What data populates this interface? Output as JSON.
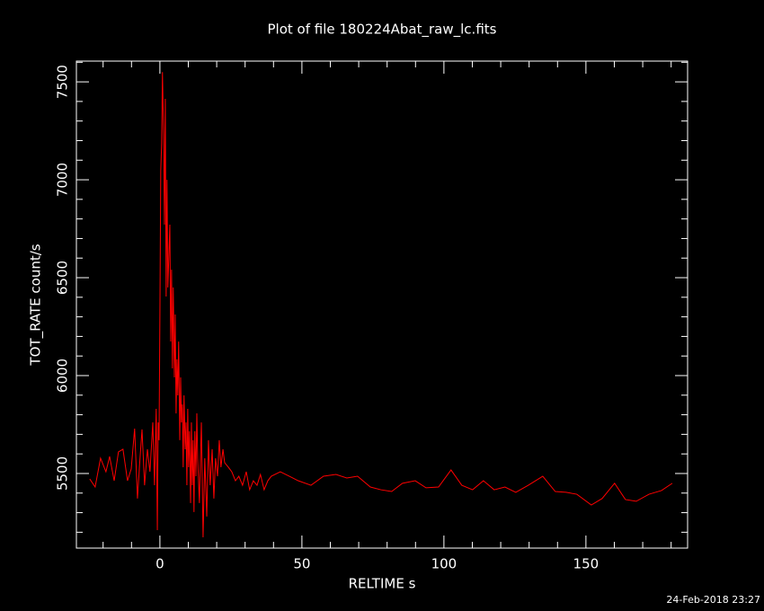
{
  "chart_data": {
    "type": "line",
    "title": "Plot of file 180224Abat_raw_lc.fits",
    "x_label": "RELTIME  s",
    "y_label": "TOT_RATE  count/s",
    "timestamp": "24-Feb-2018 23:27",
    "xlim": [
      -29.4,
      185.8
    ],
    "ylim": [
      5119,
      7606
    ],
    "xticks": [
      0,
      50,
      100,
      150
    ],
    "yticks": [
      5500,
      6000,
      6500,
      7000,
      7500
    ],
    "xminorticks": [
      -20,
      -10,
      10,
      20,
      30,
      40,
      60,
      70,
      80,
      90,
      110,
      120,
      130,
      140,
      160,
      170,
      180
    ],
    "yminorticks": [
      5200,
      5300,
      5400,
      5600,
      5700,
      5800,
      5900,
      6100,
      6200,
      6300,
      6400,
      6600,
      6700,
      6800,
      6900,
      7100,
      7200,
      7300,
      7400,
      7600
    ],
    "grid": false,
    "series": [
      {
        "color": "#ff0000",
        "x": [
          -24.7,
          -22.8,
          -20.9,
          -19.0,
          -17.7,
          -16.1,
          -14.6,
          -13.0,
          -11.4,
          -10.1,
          -8.9,
          -7.9,
          -7.0,
          -6.3,
          -5.4,
          -4.4,
          -3.5,
          -2.5,
          -1.9,
          -1.3,
          -0.9,
          -0.6,
          -0.3,
          0.0,
          0.3,
          0.6,
          0.9,
          1.3,
          1.6,
          1.9,
          2.2,
          2.5,
          2.8,
          3.2,
          3.5,
          3.8,
          4.1,
          4.4,
          4.7,
          5.1,
          5.4,
          5.7,
          6.0,
          6.3,
          6.6,
          7.0,
          7.3,
          7.6,
          7.9,
          8.2,
          8.5,
          8.9,
          9.2,
          9.5,
          9.8,
          10.1,
          10.4,
          10.8,
          11.1,
          11.4,
          11.7,
          12.0,
          12.3,
          12.7,
          13.0,
          13.3,
          13.9,
          14.6,
          15.2,
          15.8,
          16.5,
          17.1,
          17.7,
          18.4,
          19.0,
          19.6,
          20.3,
          20.9,
          21.5,
          22.2,
          22.8,
          24.1,
          25.3,
          26.6,
          27.8,
          29.1,
          30.4,
          31.6,
          32.9,
          34.2,
          35.4,
          36.7,
          38.0,
          39.2,
          42.4,
          45.6,
          48.7,
          53.2,
          57.6,
          62.0,
          65.8,
          69.6,
          74.1,
          77.8,
          81.6,
          85.4,
          89.9,
          93.7,
          98.1,
          102.5,
          106.3,
          110.1,
          113.9,
          117.7,
          121.5,
          125.3,
          129.7,
          134.8,
          139.2,
          143.0,
          146.8,
          151.9,
          155.7,
          160.1,
          163.9,
          167.7,
          172.2,
          176.6,
          180.4
        ],
        "values": [
          5472,
          5431,
          5578,
          5509,
          5587,
          5463,
          5610,
          5624,
          5463,
          5523,
          5729,
          5372,
          5578,
          5725,
          5440,
          5624,
          5509,
          5761,
          5440,
          5830,
          5211,
          5761,
          5670,
          6312,
          7046,
          7183,
          7550,
          7229,
          6771,
          7413,
          6404,
          7000,
          6450,
          6633,
          6771,
          6174,
          6541,
          6037,
          6450,
          5991,
          6312,
          5807,
          6083,
          5899,
          6174,
          5670,
          5991,
          5761,
          5853,
          5532,
          5899,
          5624,
          5761,
          5440,
          5830,
          5532,
          5716,
          5349,
          5761,
          5440,
          5670,
          5303,
          5716,
          5486,
          5807,
          5578,
          5349,
          5761,
          5174,
          5578,
          5280,
          5670,
          5440,
          5624,
          5372,
          5578,
          5486,
          5670,
          5532,
          5624,
          5555,
          5532,
          5509,
          5463,
          5486,
          5440,
          5509,
          5417,
          5463,
          5440,
          5495,
          5417,
          5463,
          5486,
          5509,
          5486,
          5463,
          5440,
          5486,
          5495,
          5477,
          5486,
          5431,
          5417,
          5408,
          5450,
          5463,
          5427,
          5431,
          5518,
          5440,
          5417,
          5463,
          5417,
          5431,
          5404,
          5440,
          5486,
          5408,
          5404,
          5394,
          5339,
          5372,
          5450,
          5367,
          5358,
          5394,
          5413,
          5450
        ]
      }
    ]
  }
}
